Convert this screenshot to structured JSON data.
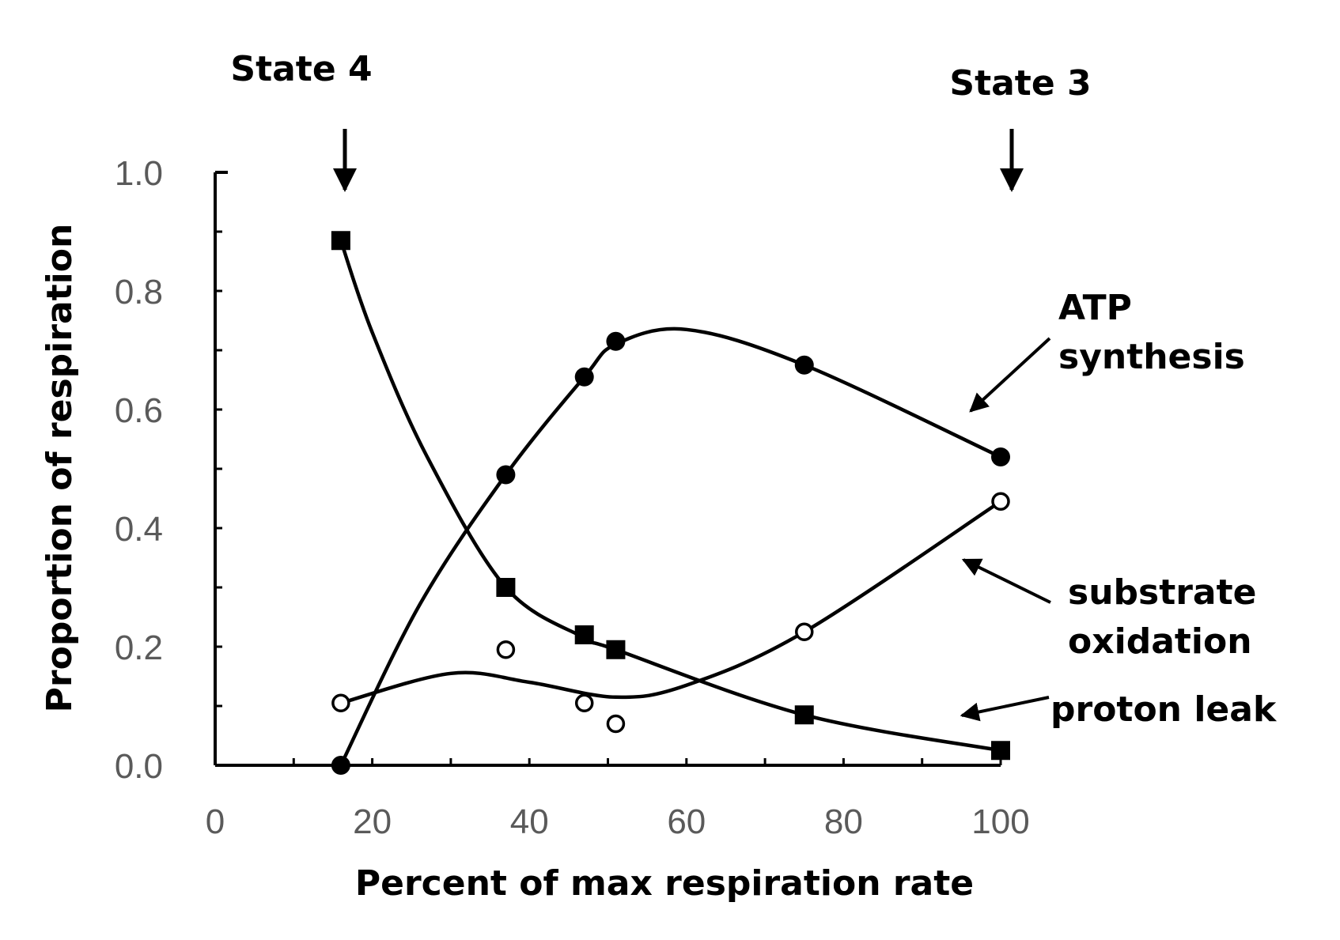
{
  "chart_data": {
    "type": "line",
    "title": "",
    "xlabel": "Percent of max respiration rate",
    "ylabel": "Proportion of respiration",
    "xlim": [
      0,
      100
    ],
    "ylim": [
      0,
      1.0
    ],
    "x_ticks": [
      "0",
      "20",
      "40",
      "60",
      "80",
      "100"
    ],
    "y_ticks": [
      "0.0",
      "0.2",
      "0.4",
      "0.6",
      "0.8",
      "1.0"
    ],
    "grid": false,
    "legend": "none",
    "series": [
      {
        "key": "atp",
        "marker": "filled-circle",
        "x": [
          16,
          37,
          47,
          51,
          75,
          100
        ],
        "y": [
          0.0,
          0.49,
          0.655,
          0.715,
          0.675,
          0.52
        ],
        "curve_x": [
          16,
          26,
          37,
          47,
          51,
          60,
          75,
          100
        ],
        "curve_y": [
          0.0,
          0.27,
          0.49,
          0.655,
          0.71,
          0.735,
          0.675,
          0.52
        ]
      },
      {
        "key": "substrate",
        "marker": "open-circle",
        "x": [
          16,
          37,
          47,
          51,
          75,
          100
        ],
        "y": [
          0.105,
          0.195,
          0.105,
          0.07,
          0.225,
          0.445
        ],
        "curve_x": [
          16,
          30,
          40,
          51,
          60,
          75,
          100
        ],
        "curve_y": [
          0.105,
          0.155,
          0.14,
          0.115,
          0.135,
          0.225,
          0.445
        ]
      },
      {
        "key": "leak",
        "marker": "filled-square",
        "x": [
          16,
          37,
          47,
          51,
          75,
          100
        ],
        "y": [
          0.885,
          0.3,
          0.22,
          0.195,
          0.085,
          0.025
        ],
        "curve_x": [
          16,
          20,
          27,
          37,
          47,
          51,
          75,
          100
        ],
        "curve_y": [
          0.885,
          0.73,
          0.52,
          0.3,
          0.215,
          0.195,
          0.085,
          0.025
        ]
      }
    ],
    "annotations": {
      "state4": "State 4",
      "state3": "State 3",
      "atp_line1": "ATP",
      "atp_line2": "synthesis",
      "substrate_line1": "substrate",
      "substrate_line2": "oxidation",
      "leak": "proton leak"
    }
  }
}
